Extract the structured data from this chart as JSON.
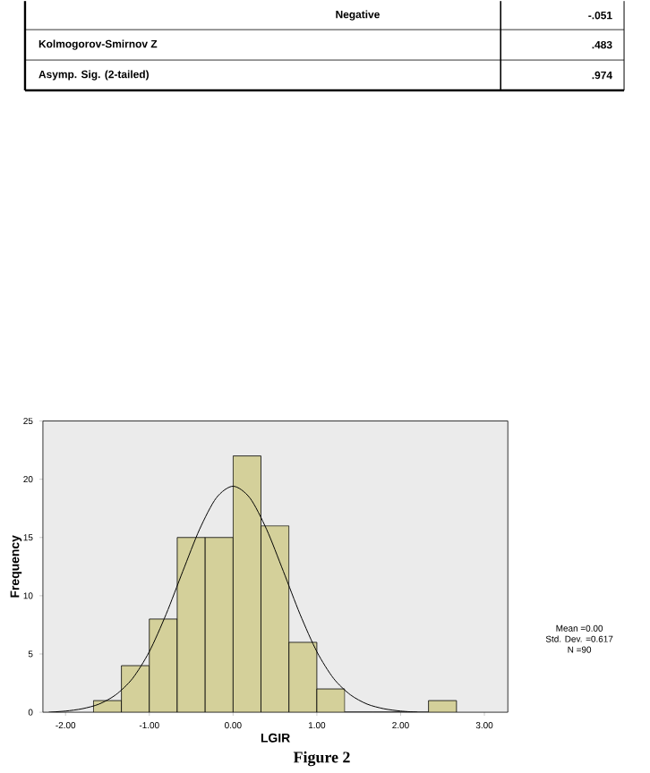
{
  "chart_data": {
    "type": "histogram",
    "xlabel": "LGIR",
    "ylabel": "Frequency",
    "bins": [
      -1.667,
      -1.333,
      -1,
      -0.667,
      -0.333,
      0,
      0.333,
      0.667,
      1,
      1.333,
      1.667,
      2,
      2.333,
      2.667
    ],
    "values": [
      1,
      4,
      8,
      15,
      15,
      22,
      16,
      6,
      2,
      0,
      0,
      0,
      1
    ],
    "color": "#d4d09a",
    "series": [
      {
        "type": "line",
        "color": "#000000",
        "x": [
          -2.2,
          -2.0,
          -1.8,
          -1.6,
          -1.4,
          -1.2,
          -1.0,
          -0.8,
          -0.6,
          -0.4,
          -0.2,
          0,
          0.2,
          0.4,
          0.6,
          0.8,
          1.0,
          1.2,
          1.4,
          1.6,
          1.8,
          2.0,
          2.2
        ],
        "values": [
          0.0,
          0.1,
          0.3,
          0.7,
          1.5,
          2.9,
          5.2,
          8.4,
          12.1,
          15.7,
          18.4,
          19.4,
          18.4,
          15.7,
          12.1,
          8.4,
          5.2,
          2.9,
          1.5,
          0.7,
          0.3,
          0.1,
          0.0
        ]
      }
    ],
    "xlim": [
      -2.27,
      3.28
    ],
    "ylim": [
      0,
      25
    ],
    "xticks": [
      {
        "value": -2,
        "label": "-2.00"
      },
      {
        "value": -1,
        "label": "-1.00"
      },
      {
        "value": 0,
        "label": "0.00"
      },
      {
        "value": 1,
        "label": "1.00"
      },
      {
        "value": 2,
        "label": "2.00"
      },
      {
        "value": 3,
        "label": "3.00"
      }
    ],
    "yticks": [
      0,
      5,
      10,
      15,
      20,
      25
    ],
    "grid": false,
    "annotations": [
      "Negative",
      "-.051",
      "Kolmogorov-Smirnov Z",
      ".483",
      "Asymp. Sig. (2-tailed)",
      ".974",
      "Mean =0.00",
      "Std. Dev. =0.617",
      "N =90",
      "Figure 2"
    ]
  }
}
